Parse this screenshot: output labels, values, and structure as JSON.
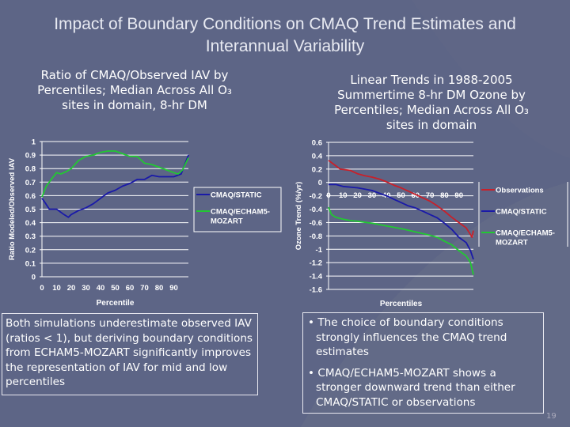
{
  "slide": {
    "title_line1": "Impact of Boundary Conditions on CMAQ Trend Estimates and",
    "title_line2": "Interannual Variability",
    "left_heading": [
      "Ratio of CMAQ/Observed IAV by",
      "Percentiles; Median Across All O₃",
      "sites in domain, 8-hr DM"
    ],
    "right_heading": [
      "Linear Trends in 1988-2005",
      "Summertime 8-hr DM Ozone by",
      "Percentiles; Median Across All O₃",
      "sites in domain"
    ],
    "left_text": "Both simulations underestimate observed IAV (ratios < 1), but deriving boundary conditions from ECHAM5-MOZART significantly improves the representation of IAV for mid and low percentiles",
    "right_bullets": [
      "The choice of boundary conditions strongly influences the CMAQ trend estimates",
      "CMAQ/ECHAM5-MOZART shows a stronger downward trend than either CMAQ/STATIC or observations"
    ],
    "page_number": "19",
    "colors": {
      "background": "#5d6586",
      "static": "#1a1aa8",
      "echam": "#22c832",
      "observations": "#c8202a"
    }
  },
  "chart_data": [
    {
      "type": "line",
      "xlabel": "Percentile",
      "ylabel": "Ratio Modeled/Observed IAV",
      "xlim": [
        0,
        100
      ],
      "ylim": [
        0,
        1
      ],
      "xticks": [
        "0",
        "10",
        "20",
        "30",
        "40",
        "50",
        "60",
        "70",
        "80",
        "90"
      ],
      "yticks": [
        "0",
        "0.1",
        "0.2",
        "0.3",
        "0.4",
        "0.5",
        "0.6",
        "0.7",
        "0.8",
        "0.9",
        "1"
      ],
      "grid": true,
      "legend": "right",
      "series": [
        {
          "name": "CMAQ/STATIC",
          "color": "#1a1aa8",
          "x": [
            0,
            2,
            5,
            10,
            15,
            18,
            20,
            25,
            30,
            35,
            40,
            45,
            50,
            55,
            60,
            65,
            70,
            75,
            80,
            85,
            90,
            95,
            100
          ],
          "y": [
            0.58,
            0.55,
            0.5,
            0.5,
            0.46,
            0.44,
            0.46,
            0.49,
            0.51,
            0.54,
            0.58,
            0.62,
            0.64,
            0.67,
            0.69,
            0.72,
            0.72,
            0.75,
            0.74,
            0.74,
            0.74,
            0.76,
            0.9
          ]
        },
        {
          "name": "CMAQ/ECHAM5-MOZART",
          "color": "#22c832",
          "x": [
            0,
            3,
            7,
            10,
            13,
            17,
            20,
            25,
            30,
            35,
            40,
            45,
            50,
            55,
            60,
            65,
            70,
            75,
            80,
            85,
            90,
            93,
            96,
            100
          ],
          "y": [
            0.59,
            0.67,
            0.73,
            0.77,
            0.76,
            0.78,
            0.8,
            0.86,
            0.89,
            0.9,
            0.92,
            0.93,
            0.93,
            0.91,
            0.89,
            0.89,
            0.84,
            0.83,
            0.81,
            0.79,
            0.77,
            0.76,
            0.79,
            0.88
          ]
        }
      ]
    },
    {
      "type": "line",
      "xlabel": "Percentiles",
      "ylabel": "Ozone Trend (%/yr)",
      "xlim": [
        0,
        100
      ],
      "ylim": [
        -1.6,
        0.6
      ],
      "xticks": [
        "0",
        "10",
        "20",
        "30",
        "40",
        "50",
        "60",
        "70",
        "80",
        "90"
      ],
      "yticks": [
        "-1.6",
        "-1.4",
        "-1.2",
        "-1",
        "-0.8",
        "-0.6",
        "-0.4",
        "-0.2",
        "0",
        "0.2",
        "0.4",
        "0.6"
      ],
      "grid": true,
      "legend": "right",
      "series": [
        {
          "name": "Observations",
          "color": "#c8202a",
          "x": [
            0,
            5,
            8,
            15,
            20,
            25,
            30,
            35,
            40,
            45,
            50,
            55,
            60,
            65,
            70,
            75,
            80,
            85,
            90,
            95,
            98,
            99,
            100
          ],
          "y": [
            0.33,
            0.25,
            0.2,
            0.18,
            0.13,
            0.1,
            0.08,
            0.05,
            0.01,
            -0.04,
            -0.08,
            -0.13,
            -0.18,
            -0.23,
            -0.28,
            -0.35,
            -0.43,
            -0.52,
            -0.6,
            -0.68,
            -0.78,
            -0.82,
            -0.72
          ]
        },
        {
          "name": "CMAQ/STATIC",
          "color": "#1a1aa8",
          "x": [
            0,
            5,
            10,
            20,
            30,
            35,
            40,
            45,
            50,
            55,
            60,
            65,
            70,
            75,
            80,
            85,
            90,
            95,
            98,
            100
          ],
          "y": [
            -0.03,
            -0.03,
            -0.06,
            -0.08,
            -0.12,
            -0.16,
            -0.2,
            -0.25,
            -0.3,
            -0.35,
            -0.38,
            -0.43,
            -0.48,
            -0.53,
            -0.61,
            -0.7,
            -0.82,
            -0.9,
            -1.02,
            -1.15
          ]
        },
        {
          "name": "CMAQ/ECHAM5-MOZART",
          "color": "#22c832",
          "x": [
            0,
            2,
            5,
            10,
            15,
            20,
            30,
            40,
            50,
            60,
            70,
            75,
            80,
            85,
            90,
            95,
            98,
            100
          ],
          "y": [
            -0.37,
            -0.48,
            -0.52,
            -0.55,
            -0.57,
            -0.58,
            -0.61,
            -0.65,
            -0.69,
            -0.74,
            -0.79,
            -0.82,
            -0.88,
            -0.93,
            -1.02,
            -1.1,
            -1.2,
            -1.38
          ]
        }
      ]
    }
  ]
}
